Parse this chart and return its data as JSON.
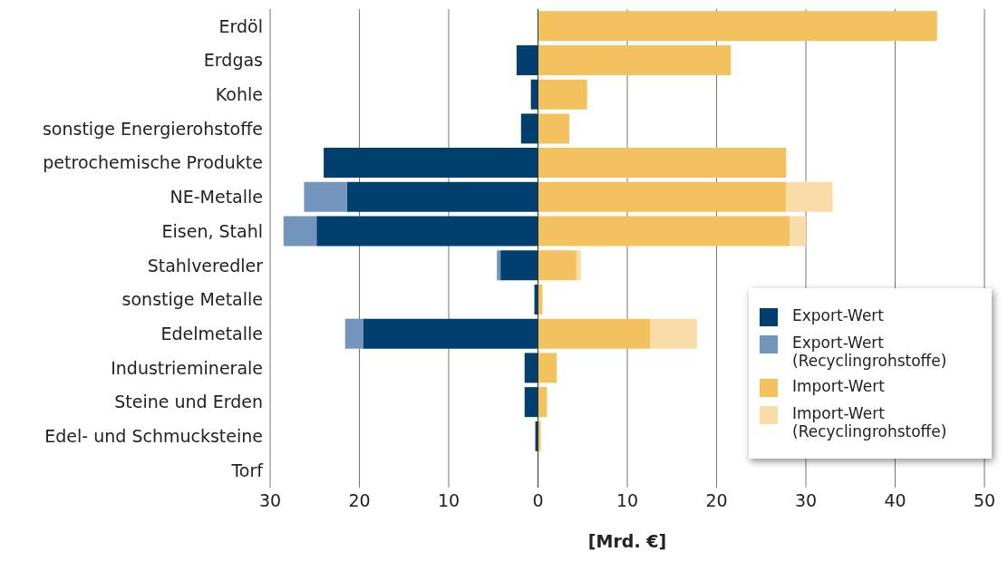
{
  "chart_data": {
    "type": "bar",
    "orientation": "horizontal",
    "stacked": true,
    "xlabel": "[Mrd. €]",
    "categories": [
      "Erdöl",
      "Erdgas",
      "Kohle",
      "sonstige Energierohstoffe",
      "petrochemische Produkte",
      "NE-Metalle",
      "Eisen, Stahl",
      "Stahlveredler",
      "sonstige Metalle",
      "Edelmetalle",
      "Industrieminerale",
      "Steine und Erden",
      "Edel- und Schmucksteine",
      "Torf"
    ],
    "series": [
      {
        "name": "Export-Wert",
        "color": "#003f6e",
        "values": [
          0,
          -2.4,
          -0.8,
          -1.9,
          -24,
          -21.4,
          -24.8,
          -4.2,
          -0.4,
          -19.6,
          -1.5,
          -1.5,
          -0.3,
          null
        ]
      },
      {
        "name": "Export-Wert (Recyclingrohstoffe)",
        "color": "#7394bd",
        "values": [
          0,
          0,
          0,
          0,
          0,
          -4.8,
          -3.7,
          -0.4,
          0,
          -2,
          0,
          0,
          0,
          0
        ]
      },
      {
        "name": "Import-Wert",
        "color": "#f3c15e",
        "values": [
          44.7,
          21.6,
          5.5,
          3.5,
          27.8,
          27.8,
          28.2,
          4.3,
          0.5,
          12.6,
          2.1,
          1,
          0.3,
          null
        ]
      },
      {
        "name": "Import-Wert (Recyclingrohstoffe)",
        "color": "#f9dca7",
        "values": [
          0,
          0,
          0,
          0,
          0,
          5.2,
          1.8,
          0.5,
          0,
          5.2,
          0,
          0,
          0,
          0
        ]
      }
    ],
    "xlim": [
      -30,
      50
    ],
    "xticks": [
      {
        "value": -30,
        "label": "30"
      },
      {
        "value": -20,
        "label": "20"
      },
      {
        "value": -10,
        "label": "10"
      },
      0,
      10,
      20,
      30,
      40,
      50
    ],
    "grid": "x",
    "legend": "right",
    "ref_lines": [
      {
        "axis": "x",
        "value": 0,
        "color": "#333333"
      }
    ]
  }
}
